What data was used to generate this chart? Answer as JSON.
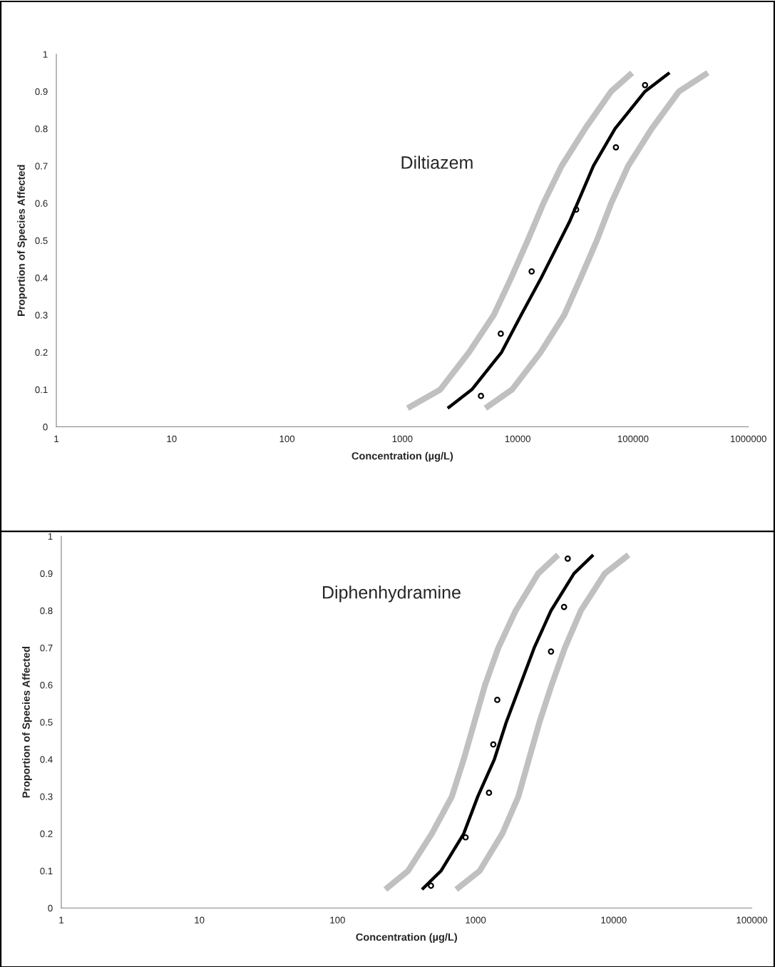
{
  "chart_data": [
    {
      "type": "line",
      "xlabel": "Concentration (µg/L)",
      "ylabel": "Proportion of Species Affected",
      "annotations": [
        "Diltiazem"
      ],
      "log": "x",
      "grid": false,
      "legend": false,
      "xlim": [
        1,
        1000000
      ],
      "xticks": [
        1,
        10,
        100,
        1000,
        10000,
        100000,
        1000000
      ],
      "ylim": [
        0,
        1
      ],
      "yticks": [
        0,
        0.1,
        0.2,
        0.3,
        0.4,
        0.5,
        0.6,
        0.7,
        0.8,
        0.9,
        1
      ],
      "series": [
        {
          "color": "#c0c0c0",
          "marker": "none",
          "x": [
            1110,
            2130,
            3780,
            6200,
            8780,
            12200,
            16700,
            24000,
            38400,
            64600,
            98000
          ],
          "values": [
            0.05,
            0.1,
            0.2,
            0.3,
            0.4,
            0.5,
            0.6,
            0.7,
            0.8,
            0.9,
            0.95
          ]
        },
        {
          "color": "#c0c0c0",
          "marker": "none",
          "x": [
            5250,
            8930,
            15800,
            25300,
            35200,
            48500,
            64600,
            90600,
            145000,
            250000,
            445000
          ],
          "values": [
            0.05,
            0.1,
            0.2,
            0.3,
            0.4,
            0.5,
            0.6,
            0.7,
            0.8,
            0.9,
            0.95
          ]
        },
        {
          "color": "#000000",
          "marker": "none",
          "x": [
            2470,
            4000,
            7240,
            10700,
            16000,
            28100,
            45300,
            69800,
            127000,
            207000
          ],
          "values": [
            0.05,
            0.1,
            0.2,
            0.3,
            0.4,
            0.55,
            0.7,
            0.8,
            0.9,
            0.95
          ]
        },
        {
          "type": "scatter",
          "color": "#000000",
          "marker": "circle",
          "x": [
            4800,
            7130,
            13200,
            32100,
            71000,
            127000
          ],
          "values": [
            0.083,
            0.25,
            0.417,
            0.583,
            0.75,
            0.917
          ]
        }
      ]
    },
    {
      "type": "line",
      "xlabel": "Concentration (µg/L)",
      "ylabel": "Proportion of Species Affected",
      "annotations": [
        "Diphenhydramine"
      ],
      "log": "x",
      "grid": false,
      "legend": false,
      "xlim": [
        1,
        100000
      ],
      "xticks": [
        1,
        10,
        100,
        1000,
        10000,
        100000
      ],
      "ylim": [
        0,
        1
      ],
      "yticks": [
        0,
        0.1,
        0.2,
        0.3,
        0.4,
        0.5,
        0.6,
        0.7,
        0.8,
        0.9,
        1
      ],
      "series": [
        {
          "color": "#c0c0c0",
          "marker": "none",
          "x": [
            222,
            324,
            482,
            673,
            820,
            980,
            1170,
            1460,
            1950,
            2840,
            3960
          ],
          "values": [
            0.05,
            0.1,
            0.2,
            0.3,
            0.4,
            0.5,
            0.6,
            0.7,
            0.8,
            0.9,
            0.95
          ]
        },
        {
          "color": "#c0c0c0",
          "marker": "none",
          "x": [
            724,
            1070,
            1560,
            2040,
            2430,
            2900,
            3550,
            4430,
            5780,
            8610,
            12800
          ],
          "values": [
            0.05,
            0.1,
            0.2,
            0.3,
            0.4,
            0.5,
            0.6,
            0.7,
            0.8,
            0.9,
            0.95
          ]
        },
        {
          "color": "#000000",
          "marker": "none",
          "x": [
            409,
            562,
            820,
            1037,
            1367,
            1667,
            2655,
            3515,
            5160,
            7110
          ],
          "values": [
            0.05,
            0.1,
            0.2,
            0.3,
            0.4,
            0.5,
            0.7,
            0.8,
            0.9,
            0.95
          ]
        },
        {
          "type": "scatter",
          "color": "#000000",
          "marker": "circle",
          "x": [
            475,
            846,
            1250,
            1343,
            1435,
            3515,
            4370,
            4645
          ],
          "values": [
            0.06,
            0.19,
            0.31,
            0.44,
            0.56,
            0.69,
            0.81,
            0.94
          ]
        }
      ]
    }
  ]
}
